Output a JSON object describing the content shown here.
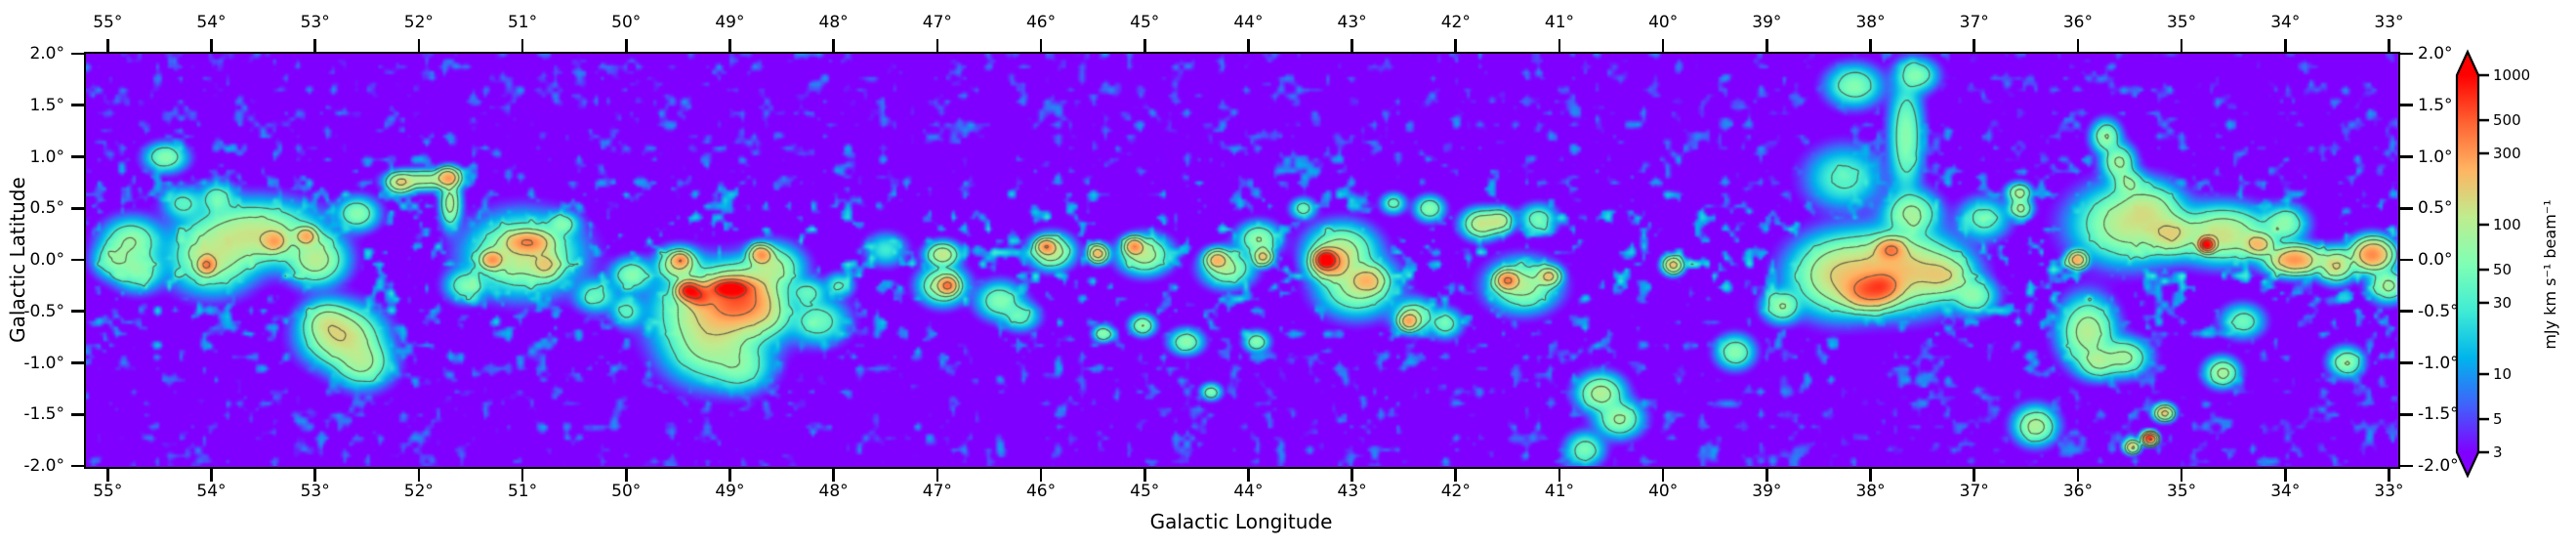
{
  "figure": {
    "kind": "galactic plane emission map with colorbar",
    "background_color": "#ffffff"
  },
  "chart_data": {
    "type": "heatmap",
    "title": "",
    "xlabel": "Galactic Longitude",
    "ylabel": "Galactic Latitude",
    "x_axis": {
      "range_deg": [
        55.21,
        32.92
      ],
      "tick_values": [
        55,
        54,
        53,
        52,
        51,
        50,
        49,
        48,
        47,
        46,
        45,
        44,
        43,
        42,
        41,
        40,
        39,
        38,
        37,
        36,
        35,
        34,
        33
      ],
      "tick_labels": [
        "55°",
        "54°",
        "53°",
        "52°",
        "51°",
        "50°",
        "49°",
        "48°",
        "47°",
        "46°",
        "45°",
        "44°",
        "43°",
        "42°",
        "41°",
        "40°",
        "39°",
        "38°",
        "37°",
        "36°",
        "35°",
        "34°",
        "33°"
      ],
      "sides": [
        "top",
        "bottom"
      ]
    },
    "y_axis": {
      "range_deg": [
        2.0,
        -2.0
      ],
      "tick_values": [
        2.0,
        1.5,
        1.0,
        0.5,
        0.0,
        -0.5,
        -1.0,
        -1.5,
        -2.0
      ],
      "tick_labels": [
        "2.0°",
        "1.5°",
        "1.0°",
        "0.5°",
        "0.0°",
        "-0.5°",
        "-1.0°",
        "-1.5°",
        "-2.0°"
      ],
      "sides": [
        "left",
        "right"
      ]
    },
    "grid": false,
    "colorbar": {
      "label": "mJy km s⁻¹ beam⁻¹",
      "scale": "log",
      "vmin": 3,
      "vmax": 1000,
      "ticks": [
        1000,
        500,
        300,
        100,
        50,
        30,
        10,
        5,
        3
      ],
      "tick_labels": [
        "1000",
        "500",
        "300",
        "100",
        "50",
        "30",
        "10",
        "5",
        "3"
      ],
      "extend": "both",
      "over_color": "#ff0000",
      "under_color": "#8000ff"
    },
    "colormap": {
      "name": "rainbow",
      "stops": [
        {
          "pos": 0.0,
          "color": "#8000ff"
        },
        {
          "pos": 0.125,
          "color": "#4062fa"
        },
        {
          "pos": 0.25,
          "color": "#00b4ec"
        },
        {
          "pos": 0.375,
          "color": "#40ecd4"
        },
        {
          "pos": 0.5,
          "color": "#80ffb4"
        },
        {
          "pos": 0.625,
          "color": "#bfec8e"
        },
        {
          "pos": 0.75,
          "color": "#ffb462"
        },
        {
          "pos": 0.875,
          "color": "#ff6232"
        },
        {
          "pos": 1.0,
          "color": "#ff0000"
        }
      ]
    },
    "contour_levels_mJy": [
      30,
      70,
      150,
      350,
      700
    ],
    "contour_color": "rgba(80,80,60,0.85)",
    "background_level_mJy": 2.55,
    "sources_fields": [
      "glon_deg",
      "glat_deg",
      "peak_mJy",
      "sigma_l_deg",
      "sigma_b_deg"
    ],
    "sources": [
      [
        54.95,
        0.0,
        55,
        0.1,
        0.09
      ],
      [
        54.78,
        0.18,
        70,
        0.14,
        0.11
      ],
      [
        54.72,
        -0.1,
        60,
        0.12,
        0.1
      ],
      [
        54.45,
        1.0,
        60,
        0.1,
        0.07
      ],
      [
        54.28,
        0.55,
        35,
        0.1,
        0.08
      ],
      [
        54.05,
        -0.05,
        330,
        0.05,
        0.05
      ],
      [
        54.0,
        0.02,
        95,
        0.2,
        0.16
      ],
      [
        53.95,
        0.6,
        45,
        0.09,
        0.08
      ],
      [
        53.6,
        0.25,
        120,
        0.3,
        0.15
      ],
      [
        53.4,
        0.18,
        200,
        0.07,
        0.06
      ],
      [
        53.09,
        0.23,
        230,
        0.06,
        0.05
      ],
      [
        53.0,
        0.0,
        100,
        0.14,
        0.12
      ],
      [
        52.9,
        -0.6,
        70,
        0.12,
        0.1
      ],
      [
        52.75,
        -0.75,
        140,
        0.18,
        0.14
      ],
      [
        52.55,
        -1.0,
        80,
        0.14,
        0.12
      ],
      [
        52.6,
        0.45,
        60,
        0.1,
        0.08
      ],
      [
        52.18,
        0.75,
        150,
        0.07,
        0.05
      ],
      [
        51.95,
        0.78,
        90,
        0.16,
        0.05
      ],
      [
        51.72,
        0.8,
        260,
        0.06,
        0.05
      ],
      [
        51.7,
        0.55,
        90,
        0.05,
        0.12
      ],
      [
        51.55,
        -0.25,
        50,
        0.1,
        0.08
      ],
      [
        51.3,
        0.0,
        280,
        0.06,
        0.05
      ],
      [
        51.0,
        0.05,
        110,
        0.25,
        0.18
      ],
      [
        50.95,
        0.17,
        290,
        0.12,
        0.06
      ],
      [
        50.78,
        -0.05,
        120,
        0.08,
        0.07
      ],
      [
        50.62,
        0.35,
        50,
        0.08,
        0.06
      ],
      [
        50.3,
        -0.35,
        40,
        0.1,
        0.08
      ],
      [
        50.0,
        -0.5,
        35,
        0.08,
        0.08
      ],
      [
        49.95,
        -0.15,
        60,
        0.1,
        0.08
      ],
      [
        49.5,
        -0.05,
        130,
        0.1,
        0.08
      ],
      [
        49.48,
        0.0,
        260,
        0.05,
        0.04
      ],
      [
        49.4,
        -0.3,
        900,
        0.06,
        0.05
      ],
      [
        49.3,
        -0.35,
        500,
        0.07,
        0.06
      ],
      [
        49.0,
        -0.28,
        1200,
        0.1,
        0.045
      ],
      [
        48.92,
        -0.38,
        420,
        0.18,
        0.13
      ],
      [
        49.1,
        -0.5,
        170,
        0.28,
        0.2
      ],
      [
        49.2,
        -0.85,
        70,
        0.22,
        0.18
      ],
      [
        48.9,
        -1.05,
        45,
        0.15,
        0.12
      ],
      [
        48.7,
        0.05,
        290,
        0.06,
        0.05
      ],
      [
        48.6,
        -0.08,
        90,
        0.14,
        0.11
      ],
      [
        48.65,
        -0.55,
        50,
        0.12,
        0.1
      ],
      [
        48.15,
        -0.6,
        45,
        0.14,
        0.11
      ],
      [
        48.25,
        -0.32,
        38,
        0.09,
        0.07
      ],
      [
        47.95,
        -0.25,
        32,
        0.07,
        0.06
      ],
      [
        47.5,
        0.1,
        25,
        0.1,
        0.08
      ],
      [
        46.9,
        -0.25,
        360,
        0.05,
        0.045
      ],
      [
        46.95,
        -0.25,
        100,
        0.11,
        0.09
      ],
      [
        46.95,
        0.05,
        120,
        0.08,
        0.06
      ],
      [
        46.4,
        -0.4,
        55,
        0.11,
        0.09
      ],
      [
        46.2,
        -0.55,
        40,
        0.09,
        0.07
      ],
      [
        45.95,
        0.13,
        290,
        0.05,
        0.04
      ],
      [
        45.9,
        0.08,
        120,
        0.1,
        0.08
      ],
      [
        45.45,
        0.06,
        220,
        0.05,
        0.045
      ],
      [
        45.4,
        -0.72,
        65,
        0.05,
        0.04
      ],
      [
        45.1,
        0.13,
        300,
        0.05,
        0.045
      ],
      [
        45.0,
        0.05,
        100,
        0.12,
        0.09
      ],
      [
        45.02,
        -0.64,
        70,
        0.06,
        0.05
      ],
      [
        44.6,
        -0.8,
        60,
        0.08,
        0.06
      ],
      [
        44.36,
        -1.29,
        55,
        0.05,
        0.04
      ],
      [
        44.3,
        0.0,
        210,
        0.06,
        0.05
      ],
      [
        44.2,
        -0.08,
        80,
        0.12,
        0.09
      ],
      [
        43.92,
        -0.8,
        60,
        0.06,
        0.05
      ],
      [
        43.86,
        0.03,
        190,
        0.05,
        0.045
      ],
      [
        43.9,
        0.2,
        70,
        0.1,
        0.08
      ],
      [
        43.47,
        0.5,
        45,
        0.06,
        0.05
      ],
      [
        43.25,
        0.0,
        1600,
        0.05,
        0.045
      ],
      [
        43.2,
        -0.03,
        320,
        0.1,
        0.08
      ],
      [
        43.1,
        0.1,
        90,
        0.16,
        0.12
      ],
      [
        42.85,
        -0.2,
        170,
        0.09,
        0.07
      ],
      [
        42.95,
        -0.25,
        90,
        0.18,
        0.14
      ],
      [
        42.6,
        0.55,
        40,
        0.06,
        0.05
      ],
      [
        42.45,
        -0.6,
        230,
        0.05,
        0.045
      ],
      [
        42.4,
        -0.55,
        70,
        0.1,
        0.08
      ],
      [
        42.25,
        0.5,
        60,
        0.07,
        0.06
      ],
      [
        42.1,
        -0.62,
        45,
        0.08,
        0.07
      ],
      [
        41.75,
        0.35,
        120,
        0.09,
        0.07
      ],
      [
        41.58,
        0.38,
        100,
        0.07,
        0.06
      ],
      [
        41.5,
        -0.2,
        360,
        0.06,
        0.05
      ],
      [
        41.35,
        -0.25,
        90,
        0.16,
        0.12
      ],
      [
        41.1,
        -0.16,
        160,
        0.06,
        0.05
      ],
      [
        41.2,
        0.4,
        45,
        0.09,
        0.07
      ],
      [
        40.6,
        -1.3,
        95,
        0.11,
        0.09
      ],
      [
        40.42,
        -1.55,
        75,
        0.11,
        0.09
      ],
      [
        40.75,
        -1.85,
        50,
        0.09,
        0.08
      ],
      [
        39.9,
        -0.05,
        190,
        0.05,
        0.045
      ],
      [
        39.3,
        -0.9,
        60,
        0.09,
        0.08
      ],
      [
        38.85,
        -0.45,
        70,
        0.09,
        0.08
      ],
      [
        38.3,
        -0.15,
        140,
        0.22,
        0.18
      ],
      [
        38.0,
        -0.3,
        420,
        0.14,
        0.09
      ],
      [
        37.87,
        -0.25,
        260,
        0.09,
        0.07
      ],
      [
        37.8,
        0.1,
        310,
        0.08,
        0.06
      ],
      [
        37.75,
        -0.1,
        200,
        0.28,
        0.18
      ],
      [
        37.6,
        0.45,
        80,
        0.13,
        0.11
      ],
      [
        37.65,
        1.2,
        60,
        0.08,
        0.28
      ],
      [
        37.55,
        1.8,
        55,
        0.1,
        0.08
      ],
      [
        38.15,
        1.7,
        55,
        0.13,
        0.1
      ],
      [
        38.25,
        0.8,
        35,
        0.18,
        0.15
      ],
      [
        37.3,
        -0.15,
        120,
        0.14,
        0.11
      ],
      [
        37.0,
        -0.35,
        60,
        0.11,
        0.09
      ],
      [
        36.9,
        0.4,
        40,
        0.12,
        0.1
      ],
      [
        36.56,
        0.65,
        90,
        0.06,
        0.05
      ],
      [
        36.55,
        0.5,
        80,
        0.06,
        0.05
      ],
      [
        36.4,
        -1.62,
        90,
        0.1,
        0.09
      ],
      [
        36.0,
        0.0,
        260,
        0.05,
        0.045
      ],
      [
        35.9,
        -0.7,
        100,
        0.13,
        0.16
      ],
      [
        35.8,
        -1.0,
        70,
        0.1,
        0.08
      ],
      [
        35.55,
        -0.95,
        80,
        0.12,
        0.09
      ],
      [
        35.72,
        1.2,
        70,
        0.07,
        0.08
      ],
      [
        35.6,
        0.95,
        75,
        0.08,
        0.09
      ],
      [
        35.5,
        0.75,
        60,
        0.08,
        0.07
      ],
      [
        35.5,
        0.35,
        110,
        0.25,
        0.18
      ],
      [
        35.3,
        0.5,
        70,
        0.15,
        0.12
      ],
      [
        35.1,
        0.25,
        130,
        0.12,
        0.1
      ],
      [
        35.16,
        -1.49,
        190,
        0.05,
        0.04
      ],
      [
        35.3,
        -1.74,
        800,
        0.035,
        0.03
      ],
      [
        35.47,
        -1.82,
        170,
        0.04,
        0.035
      ],
      [
        34.75,
        0.15,
        1300,
        0.04,
        0.035
      ],
      [
        34.6,
        0.25,
        130,
        0.22,
        0.13
      ],
      [
        34.6,
        -1.1,
        85,
        0.08,
        0.07
      ],
      [
        34.4,
        -0.6,
        45,
        0.1,
        0.08
      ],
      [
        34.25,
        0.15,
        200,
        0.08,
        0.06
      ],
      [
        34.0,
        0.35,
        60,
        0.11,
        0.09
      ],
      [
        33.9,
        0.0,
        310,
        0.13,
        0.07
      ],
      [
        33.5,
        -0.05,
        150,
        0.09,
        0.08
      ],
      [
        33.4,
        -1.0,
        70,
        0.08,
        0.07
      ],
      [
        33.15,
        0.05,
        340,
        0.1,
        0.08
      ],
      [
        33.0,
        -0.25,
        80,
        0.09,
        0.08
      ]
    ]
  }
}
